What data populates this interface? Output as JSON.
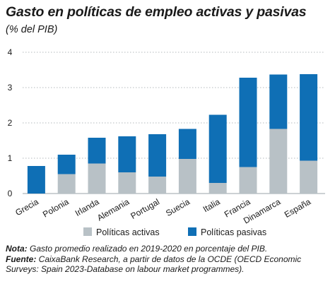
{
  "title": "Gasto en políticas de empleo activas y pasivas",
  "subtitle": "(% del PIB)",
  "notes": {
    "nota_label": "Nota:",
    "nota_text": " Gasto promedio realizado en 2019-2020 en porcentaje del PIB.",
    "fuente_label": "Fuente:",
    "fuente_text": " CaixaBank Research, a partir de datos de la OCDE (OECD Economic Surveys: Spain 2023-Database on labour market programmes)."
  },
  "colors": {
    "activas": "#b8c1c6",
    "pasivas": "#0f6fb5",
    "grid": "#9aa3a8"
  },
  "chart_data": {
    "type": "bar",
    "stacked": true,
    "categories": [
      "Grecia",
      "Polonia",
      "Irlanda",
      "Alemania",
      "Portugal",
      "Suecia",
      "Italia",
      "Francia",
      "Dinamarca",
      "España"
    ],
    "series": [
      {
        "name": "Políticas activas",
        "values": [
          0.0,
          0.55,
          0.85,
          0.6,
          0.48,
          0.98,
          0.3,
          0.75,
          1.83,
          0.93
        ]
      },
      {
        "name": "Políticas pasivas",
        "values": [
          0.78,
          0.55,
          0.73,
          1.02,
          1.2,
          0.85,
          1.93,
          2.53,
          1.54,
          2.45
        ]
      }
    ],
    "ylim": [
      0,
      4
    ],
    "yticks": [
      "0",
      "1",
      "2",
      "3",
      "4"
    ],
    "grid": true,
    "legend": "bottom"
  }
}
